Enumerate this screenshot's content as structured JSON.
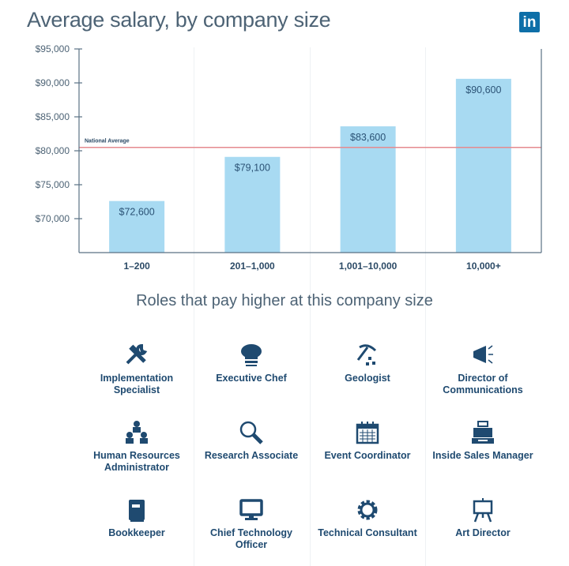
{
  "header": {
    "title": "Average salary, by company size",
    "logo": "in"
  },
  "chart_data": {
    "type": "bar",
    "title": "Average salary, by company size",
    "categories": [
      "1–200",
      "201–1,000",
      "1,001–10,000",
      "10,000+"
    ],
    "values": [
      72600,
      79100,
      83600,
      90600
    ],
    "data_labels": [
      "$72,600",
      "$79,100",
      "$83,600",
      "$90,600"
    ],
    "ylim": [
      65000,
      95000
    ],
    "yticks": [
      70000,
      75000,
      80000,
      85000,
      90000,
      95000
    ],
    "ytick_labels": [
      "$70,000",
      "$75,000",
      "$80,000",
      "$85,000",
      "$90,000",
      "$95,000"
    ],
    "reference_line": {
      "label": "National Average",
      "value": 80500,
      "color": "#e58a8f"
    },
    "bar_color": "#a8daf2",
    "grid": false
  },
  "roles": {
    "title": "Roles that pay higher at this company size",
    "items": [
      {
        "label": "Implementation Specialist",
        "icon": "tools-icon"
      },
      {
        "label": "Executive Chef",
        "icon": "chef-hat-icon"
      },
      {
        "label": "Geologist",
        "icon": "pickaxe-icon"
      },
      {
        "label": "Director of Communications",
        "icon": "megaphone-icon"
      },
      {
        "label": "Human Resources Administrator",
        "icon": "org-chart-icon"
      },
      {
        "label": "Research Associate",
        "icon": "magnifier-icon"
      },
      {
        "label": "Event Coordinator",
        "icon": "calendar-icon"
      },
      {
        "label": "Inside Sales Manager",
        "icon": "cash-register-icon"
      },
      {
        "label": "Bookkeeper",
        "icon": "book-icon"
      },
      {
        "label": "Chief Technology Officer",
        "icon": "monitor-icon"
      },
      {
        "label": "Technical Consultant",
        "icon": "gear-icon"
      },
      {
        "label": "Art Director",
        "icon": "easel-icon"
      }
    ],
    "icon_color": "#1f4a70"
  }
}
